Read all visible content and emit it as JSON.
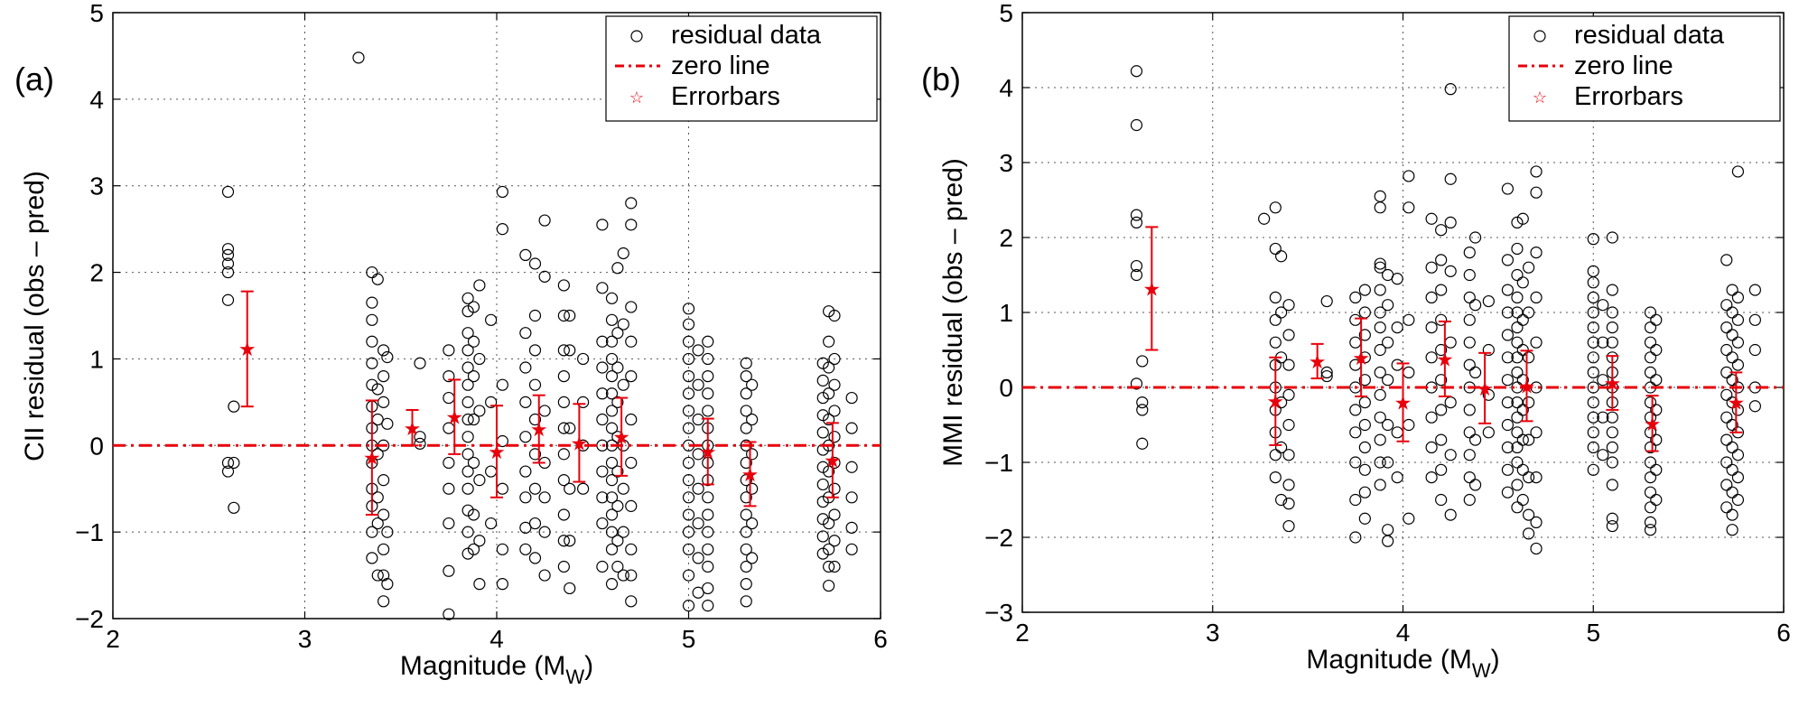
{
  "colors": {
    "data": "#000000",
    "fit": "#e8000b",
    "grid": "#555555"
  },
  "chart_data": [
    {
      "type": "scatter",
      "panel_label": "(a)",
      "xlabel_main": "Magnitude (M",
      "xlabel_sub": "W",
      "xlabel_close": ")",
      "ylabel": "CII residual (obs – pred)",
      "xlim": [
        2,
        6
      ],
      "ylim": [
        -2,
        5
      ],
      "xticks": [
        2,
        3,
        4,
        5,
        6
      ],
      "yticks": [
        -2,
        -1,
        0,
        1,
        2,
        3,
        4,
        5
      ],
      "xtick_labels": [
        "2",
        "3",
        "4",
        "5",
        "6"
      ],
      "ytick_labels": [
        "−2",
        "−1",
        "0",
        "1",
        "2",
        "3",
        "4",
        "5"
      ],
      "grid": true,
      "legend_position": "top-right",
      "legend": [
        "residual data",
        "zero line",
        "Errorbars"
      ],
      "zero_line": 0,
      "errorbars": [
        {
          "x": 2.7,
          "mean": 1.12,
          "low": 0.45,
          "high": 1.78
        },
        {
          "x": 3.35,
          "mean": -0.14,
          "low": -0.8,
          "high": 0.52
        },
        {
          "x": 3.56,
          "mean": 0.2,
          "low": 0.0,
          "high": 0.41
        },
        {
          "x": 3.78,
          "mean": 0.33,
          "low": -0.1,
          "high": 0.76
        },
        {
          "x": 4.0,
          "mean": -0.07,
          "low": -0.6,
          "high": 0.46
        },
        {
          "x": 4.22,
          "mean": 0.19,
          "low": -0.2,
          "high": 0.58
        },
        {
          "x": 4.43,
          "mean": 0.03,
          "low": -0.42,
          "high": 0.48
        },
        {
          "x": 4.65,
          "mean": 0.1,
          "low": -0.35,
          "high": 0.55
        },
        {
          "x": 5.1,
          "mean": -0.07,
          "low": -0.45,
          "high": 0.31
        },
        {
          "x": 5.32,
          "mean": -0.33,
          "low": -0.7,
          "high": 0.04
        },
        {
          "x": 5.75,
          "mean": -0.17,
          "low": -0.6,
          "high": 0.26
        }
      ],
      "residuals": [
        {
          "x": 2.6,
          "y": [
            2.93,
            2.27,
            2.2,
            2.1,
            2.0,
            1.68,
            -0.2,
            -0.3
          ]
        },
        {
          "x": 2.63,
          "y": [
            0.45,
            -0.72,
            -0.2
          ]
        },
        {
          "x": 3.28,
          "y": [
            4.48
          ]
        },
        {
          "x": 3.35,
          "y": [
            2.0,
            1.65,
            1.45,
            1.2,
            0.95,
            0.7,
            0.45,
            0.2,
            0.0,
            -0.2,
            -0.5,
            -0.7,
            -1.0,
            -1.3
          ]
        },
        {
          "x": 3.38,
          "y": [
            1.92,
            0.65,
            0.3,
            -0.1,
            -0.6,
            -0.9,
            -1.5
          ]
        },
        {
          "x": 3.41,
          "y": [
            1.1,
            0.8,
            0.5,
            0.0,
            -0.4,
            -0.8,
            -1.2,
            -1.5,
            -1.8
          ]
        },
        {
          "x": 3.43,
          "y": [
            1.02,
            0.25,
            -1.0,
            -1.6
          ]
        },
        {
          "x": 3.6,
          "y": [
            0.95,
            0.1,
            0.02
          ]
        },
        {
          "x": 3.75,
          "y": [
            1.1,
            0.8,
            0.55,
            0.2,
            -0.2,
            -0.5,
            -0.9,
            -1.45,
            -1.95
          ]
        },
        {
          "x": 3.85,
          "y": [
            1.7,
            1.55,
            1.3,
            1.1,
            0.9,
            0.7,
            0.5,
            0.3,
            0.1,
            -0.1,
            -0.3,
            -0.5,
            -0.75,
            -1.0,
            -1.25
          ]
        },
        {
          "x": 3.88,
          "y": [
            1.6,
            1.2,
            0.8,
            0.3,
            -0.2,
            -0.8,
            -1.2
          ]
        },
        {
          "x": 3.91,
          "y": [
            1.85,
            1.0,
            0.4,
            -0.4,
            -1.1,
            -1.6
          ]
        },
        {
          "x": 3.97,
          "y": [
            1.45,
            0.5,
            -0.3,
            -0.9
          ]
        },
        {
          "x": 4.03,
          "y": [
            2.93,
            2.5,
            0.7,
            0.05,
            -0.5,
            -1.2,
            -1.6
          ]
        },
        {
          "x": 4.15,
          "y": [
            2.2,
            1.3,
            0.9,
            0.5,
            0.1,
            -0.3,
            -0.6,
            -0.95,
            -1.2
          ]
        },
        {
          "x": 4.2,
          "y": [
            2.1,
            1.5,
            1.1,
            0.7,
            0.3,
            -0.1,
            -0.5,
            -0.9,
            -1.3
          ]
        },
        {
          "x": 4.25,
          "y": [
            2.6,
            1.95,
            0.4,
            -0.2,
            -0.6,
            -1.0,
            -1.5
          ]
        },
        {
          "x": 4.35,
          "y": [
            1.85,
            1.5,
            1.1,
            0.8,
            0.5,
            0.2,
            -0.1,
            -0.4,
            -0.8,
            -1.1,
            -1.4
          ]
        },
        {
          "x": 4.38,
          "y": [
            1.5,
            1.1,
            0.2,
            -0.5,
            -1.1,
            -1.65
          ]
        },
        {
          "x": 4.45,
          "y": [
            1.0,
            0.5,
            0.0,
            -0.5
          ]
        },
        {
          "x": 4.55,
          "y": [
            2.55,
            1.82,
            1.2,
            0.9,
            0.6,
            0.3,
            0.0,
            -0.3,
            -0.6,
            -0.9,
            -1.4
          ]
        },
        {
          "x": 4.6,
          "y": [
            1.7,
            1.45,
            1.2,
            1.0,
            0.8,
            0.6,
            0.4,
            0.2,
            0.0,
            -0.2,
            -0.4,
            -0.6,
            -0.8,
            -1.0,
            -1.2,
            -1.6
          ]
        },
        {
          "x": 4.63,
          "y": [
            2.05,
            1.3,
            0.9,
            0.5,
            0.1,
            -0.3,
            -0.7,
            -1.1,
            -1.4
          ]
        },
        {
          "x": 4.66,
          "y": [
            2.22,
            1.4,
            0.7,
            0.0,
            -0.5,
            -1.0,
            -1.5
          ]
        },
        {
          "x": 4.7,
          "y": [
            2.8,
            2.55,
            1.6,
            1.2,
            0.8,
            0.3,
            -0.2,
            -0.7,
            -1.2,
            -1.5,
            -1.8
          ]
        },
        {
          "x": 5.0,
          "y": [
            1.58,
            1.4,
            1.2,
            1.0,
            0.8,
            0.6,
            0.4,
            0.2,
            0.0,
            -0.2,
            -0.4,
            -0.6,
            -0.8,
            -1.0,
            -1.2,
            -1.5,
            -1.85
          ]
        },
        {
          "x": 5.05,
          "y": [
            1.1,
            0.7,
            0.3,
            -0.1,
            -0.5,
            -0.9,
            -1.3,
            -1.7
          ]
        },
        {
          "x": 5.1,
          "y": [
            1.2,
            1.0,
            0.8,
            0.6,
            0.4,
            0.2,
            0.0,
            -0.2,
            -0.4,
            -0.6,
            -0.8,
            -1.0,
            -1.2,
            -1.4,
            -1.65,
            -1.85
          ]
        },
        {
          "x": 5.3,
          "y": [
            0.95,
            0.8,
            0.6,
            0.4,
            0.2,
            0.0,
            -0.2,
            -0.4,
            -0.6,
            -0.8,
            -1.0,
            -1.2,
            -1.4,
            -1.6,
            -1.8
          ]
        },
        {
          "x": 5.33,
          "y": [
            0.7,
            0.3,
            -0.1,
            -0.5,
            -0.9,
            -1.3
          ]
        },
        {
          "x": 5.7,
          "y": [
            0.95,
            0.75,
            0.55,
            0.35,
            0.15,
            -0.05,
            -0.25,
            -0.45,
            -0.65,
            -0.85,
            -1.05,
            -1.25
          ]
        },
        {
          "x": 5.73,
          "y": [
            1.55,
            1.2,
            0.9,
            0.6,
            0.3,
            0.0,
            -0.3,
            -0.6,
            -0.9,
            -1.2,
            -1.4,
            -1.62
          ]
        },
        {
          "x": 5.76,
          "y": [
            1.5,
            1.0,
            0.7,
            0.4,
            0.1,
            -0.2,
            -0.5,
            -0.8,
            -1.1,
            -1.4
          ]
        },
        {
          "x": 5.85,
          "y": [
            0.55,
            0.2,
            -0.25,
            -0.6,
            -0.95,
            -1.2
          ]
        }
      ]
    },
    {
      "type": "scatter",
      "panel_label": "(b)",
      "xlabel_main": "Magnitude (M",
      "xlabel_sub": "W",
      "xlabel_close": ")",
      "ylabel": "MMI residual (obs – pred)",
      "xlim": [
        2,
        6
      ],
      "ylim": [
        -3,
        5
      ],
      "xticks": [
        2,
        3,
        4,
        5,
        6
      ],
      "yticks": [
        -3,
        -2,
        -1,
        0,
        1,
        2,
        3,
        4,
        5
      ],
      "xtick_labels": [
        "2",
        "3",
        "4",
        "5",
        "6"
      ],
      "ytick_labels": [
        "−3",
        "−2",
        "−1",
        "0",
        "1",
        "2",
        "3",
        "4",
        "5"
      ],
      "grid": true,
      "legend_position": "top-right",
      "legend": [
        "residual data",
        "zero line",
        "Errorbars"
      ],
      "zero_line": 0,
      "errorbars": [
        {
          "x": 2.68,
          "mean": 1.32,
          "low": 0.5,
          "high": 2.14
        },
        {
          "x": 3.33,
          "mean": -0.18,
          "low": -0.77,
          "high": 0.4
        },
        {
          "x": 3.55,
          "mean": 0.35,
          "low": 0.12,
          "high": 0.58
        },
        {
          "x": 3.78,
          "mean": 0.4,
          "low": -0.12,
          "high": 0.92
        },
        {
          "x": 4.0,
          "mean": -0.2,
          "low": -0.72,
          "high": 0.32
        },
        {
          "x": 4.22,
          "mean": 0.38,
          "low": -0.12,
          "high": 0.88
        },
        {
          "x": 4.43,
          "mean": -0.01,
          "low": -0.48,
          "high": 0.46
        },
        {
          "x": 4.65,
          "mean": 0.02,
          "low": -0.45,
          "high": 0.49
        },
        {
          "x": 5.1,
          "mean": 0.06,
          "low": -0.3,
          "high": 0.42
        },
        {
          "x": 5.31,
          "mean": -0.48,
          "low": -0.85,
          "high": -0.11
        },
        {
          "x": 5.75,
          "mean": -0.2,
          "low": -0.6,
          "high": 0.2
        }
      ],
      "residuals": [
        {
          "x": 2.6,
          "y": [
            4.22,
            3.5,
            2.3,
            2.2,
            1.62,
            1.5,
            0.05
          ]
        },
        {
          "x": 2.63,
          "y": [
            -0.2,
            -0.3,
            -0.75,
            0.35
          ]
        },
        {
          "x": 3.27,
          "y": [
            2.25
          ]
        },
        {
          "x": 3.33,
          "y": [
            2.4,
            1.85,
            1.2,
            0.9,
            0.6,
            0.3,
            0.0,
            -0.3,
            -0.6,
            -0.9,
            -1.2
          ]
        },
        {
          "x": 3.36,
          "y": [
            1.75,
            1.0,
            0.4,
            -0.2,
            -0.8,
            -1.5
          ]
        },
        {
          "x": 3.4,
          "y": [
            1.1,
            0.7,
            0.3,
            -0.1,
            -0.5,
            -0.9,
            -1.3,
            -1.55,
            -1.85
          ]
        },
        {
          "x": 3.6,
          "y": [
            1.15,
            0.2,
            0.15
          ]
        },
        {
          "x": 3.75,
          "y": [
            1.2,
            0.9,
            0.6,
            0.3,
            0.0,
            -0.3,
            -0.6,
            -1.0,
            -1.5,
            -2.0
          ]
        },
        {
          "x": 3.8,
          "y": [
            1.3,
            1.0,
            0.7,
            0.4,
            0.1,
            -0.2,
            -0.5,
            -0.8,
            -1.1,
            -1.4,
            -1.75
          ]
        },
        {
          "x": 3.88,
          "y": [
            2.55,
            2.4,
            1.65,
            1.6,
            1.3,
            1.0,
            0.8,
            0.5,
            0.2,
            -0.1,
            -0.4,
            -0.7,
            -1.0,
            -1.3
          ]
        },
        {
          "x": 3.92,
          "y": [
            1.5,
            1.1,
            0.6,
            0.1,
            -0.5,
            -1.0,
            -1.9,
            -2.05
          ]
        },
        {
          "x": 3.97,
          "y": [
            1.45,
            0.8,
            0.3,
            -0.6,
            -1.2
          ]
        },
        {
          "x": 4.03,
          "y": [
            2.82,
            2.4,
            0.9,
            0.2,
            -0.5,
            -1.75
          ]
        },
        {
          "x": 4.15,
          "y": [
            2.25,
            1.6,
            1.2,
            0.8,
            0.4,
            0.0,
            -0.4,
            -0.8,
            -1.2
          ]
        },
        {
          "x": 4.2,
          "y": [
            2.1,
            1.7,
            1.3,
            0.9,
            0.5,
            0.1,
            -0.3,
            -0.7,
            -1.1,
            -1.5
          ]
        },
        {
          "x": 4.25,
          "y": [
            3.98,
            2.78,
            2.2,
            1.55,
            0.6,
            -0.2,
            -0.9,
            -1.7
          ]
        },
        {
          "x": 4.35,
          "y": [
            1.8,
            1.5,
            1.2,
            0.9,
            0.6,
            0.3,
            0.0,
            -0.3,
            -0.6,
            -0.9,
            -1.2,
            -1.5
          ]
        },
        {
          "x": 4.38,
          "y": [
            2.0,
            1.1,
            0.2,
            -0.7,
            -1.3
          ]
        },
        {
          "x": 4.45,
          "y": [
            1.15,
            0.5,
            -0.1,
            -0.6
          ]
        },
        {
          "x": 4.55,
          "y": [
            2.65,
            1.7,
            1.3,
            1.0,
            0.7,
            0.4,
            0.1,
            -0.2,
            -0.5,
            -0.8,
            -1.1,
            -1.4
          ]
        },
        {
          "x": 4.6,
          "y": [
            2.2,
            1.85,
            1.5,
            1.2,
            1.0,
            0.8,
            0.6,
            0.4,
            0.2,
            0.0,
            -0.2,
            -0.4,
            -0.6,
            -0.8,
            -1.0,
            -1.3,
            -1.6
          ]
        },
        {
          "x": 4.63,
          "y": [
            2.25,
            1.4,
            0.9,
            0.5,
            0.1,
            -0.3,
            -0.7,
            -1.1,
            -1.5
          ]
        },
        {
          "x": 4.66,
          "y": [
            1.6,
            1.0,
            0.4,
            -0.2,
            -0.7,
            -1.2,
            -1.7,
            -1.95
          ]
        },
        {
          "x": 4.7,
          "y": [
            2.88,
            2.6,
            1.8,
            1.2,
            0.6,
            0.0,
            -0.6,
            -1.2,
            -1.8,
            -2.15
          ]
        },
        {
          "x": 5.0,
          "y": [
            1.98,
            1.55,
            1.4,
            1.2,
            1.0,
            0.8,
            0.6,
            0.4,
            0.2,
            0.0,
            -0.2,
            -0.4,
            -0.6,
            -0.8,
            -1.1
          ]
        },
        {
          "x": 5.05,
          "y": [
            1.1,
            0.6,
            0.1,
            -0.4,
            -0.9
          ]
        },
        {
          "x": 5.1,
          "y": [
            2.0,
            1.3,
            1.0,
            0.8,
            0.6,
            0.4,
            0.2,
            0.0,
            -0.2,
            -0.4,
            -0.6,
            -0.8,
            -1.0,
            -1.3,
            -1.75,
            -1.85
          ]
        },
        {
          "x": 5.3,
          "y": [
            1.0,
            0.8,
            0.6,
            0.4,
            0.2,
            0.0,
            -0.2,
            -0.4,
            -0.6,
            -0.8,
            -1.0,
            -1.2,
            -1.4,
            -1.6,
            -1.8,
            -1.9
          ]
        },
        {
          "x": 5.33,
          "y": [
            0.9,
            0.5,
            0.1,
            -0.3,
            -0.7,
            -1.1,
            -1.5
          ]
        },
        {
          "x": 5.7,
          "y": [
            1.7,
            1.1,
            0.8,
            0.5,
            0.2,
            -0.1,
            -0.4,
            -0.7,
            -1.0,
            -1.3,
            -1.6
          ]
        },
        {
          "x": 5.73,
          "y": [
            1.3,
            1.0,
            0.7,
            0.4,
            0.1,
            -0.2,
            -0.5,
            -0.8,
            -1.1,
            -1.4,
            -1.7,
            -1.9
          ]
        },
        {
          "x": 5.76,
          "y": [
            2.88,
            1.2,
            0.9,
            0.6,
            0.3,
            0.0,
            -0.3,
            -0.6,
            -0.9,
            -1.2,
            -1.5
          ]
        },
        {
          "x": 5.85,
          "y": [
            1.3,
            0.9,
            0.5,
            0.0,
            -0.25
          ]
        }
      ]
    }
  ]
}
